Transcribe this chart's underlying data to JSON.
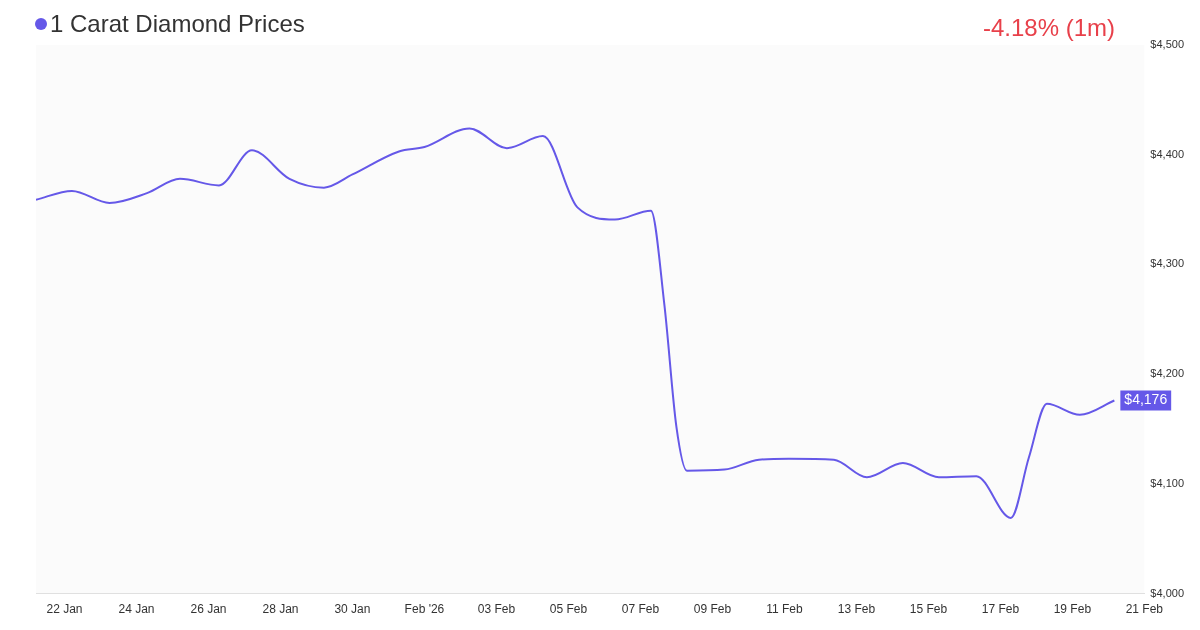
{
  "chart_data": {
    "type": "line",
    "title": "1 Carat Diamond Prices",
    "subtitle": "-4.18% (1m)",
    "x": [
      "2026-01-21T05:00",
      "2026-01-22T05:00",
      "2026-01-23T06:00",
      "2026-01-24T07:00",
      "2026-01-25T05:00",
      "2026-01-26T07:00",
      "2026-01-27T05:00",
      "2026-01-28T06:00",
      "2026-01-29T05:00",
      "2026-01-30T00:00",
      "2026-01-31T07:00",
      "2026-02-01T00:00",
      "2026-02-02T06:00",
      "2026-02-03T07:00",
      "2026-02-04T07:00",
      "2026-02-05T06:00",
      "2026-02-06T07:00",
      "2026-02-07T07:00",
      "2026-02-07T16:00",
      "2026-02-08T00:00",
      "2026-02-08T07:00",
      "2026-02-09T08:00",
      "2026-02-10T07:00",
      "2026-02-11T03:00",
      "2026-02-12T09:00",
      "2026-02-13T07:00",
      "2026-02-14T07:00",
      "2026-02-15T07:00",
      "2026-02-16T08:00",
      "2026-02-17T07:00",
      "2026-02-17T19:00",
      "2026-02-18T07:00",
      "2026-02-19T05:00",
      "2026-02-20T04:00"
    ],
    "series": [
      {
        "color": "#6558e8",
        "values": [
          4359,
          4367,
          4356,
          4365,
          4378,
          4372,
          4404,
          4378,
          4370,
          4382,
          4403,
          4407,
          4424,
          4406,
          4417,
          4352,
          4341,
          4349,
          4263,
          4152,
          4112,
          4113,
          4122,
          4123,
          4122,
          4106,
          4119,
          4106,
          4107,
          4069,
          4124,
          4173,
          4163,
          4176
        ],
        "value_labels": [
          null,
          null,
          null,
          null,
          null,
          null,
          null,
          null,
          null,
          null,
          null,
          null,
          null,
          null,
          null,
          null,
          null,
          null,
          null,
          null,
          null,
          null,
          null,
          null,
          null,
          null,
          null,
          null,
          null,
          null,
          null,
          null,
          null,
          "$4,176"
        ]
      }
    ],
    "xlim": [
      "2026-01-21T05:00",
      "2026-02-21"
    ],
    "xticks": [
      {
        "value": "2026-01-22",
        "label": "22 Jan"
      },
      {
        "value": "2026-01-24",
        "label": "24 Jan"
      },
      {
        "value": "2026-01-26",
        "label": "26 Jan"
      },
      {
        "value": "2026-01-28",
        "label": "28 Jan"
      },
      {
        "value": "2026-01-30",
        "label": "30 Jan"
      },
      {
        "value": "2026-02-01",
        "label": "Feb '26"
      },
      {
        "value": "2026-02-03",
        "label": "03 Feb"
      },
      {
        "value": "2026-02-05",
        "label": "05 Feb"
      },
      {
        "value": "2026-02-07",
        "label": "07 Feb"
      },
      {
        "value": "2026-02-09",
        "label": "09 Feb"
      },
      {
        "value": "2026-02-11",
        "label": "11 Feb"
      },
      {
        "value": "2026-02-13",
        "label": "13 Feb"
      },
      {
        "value": "2026-02-15",
        "label": "15 Feb"
      },
      {
        "value": "2026-02-17",
        "label": "17 Feb"
      },
      {
        "value": "2026-02-19",
        "label": "19 Feb"
      },
      {
        "value": "2026-02-21",
        "label": "21 Feb"
      }
    ],
    "ylim": [
      4000,
      4500
    ],
    "yticks": [
      {
        "value": 4000,
        "label": "$4,000"
      },
      {
        "value": 4100,
        "label": "$4,100"
      },
      {
        "value": 4200,
        "label": "$4,200"
      },
      {
        "value": 4300,
        "label": "$4,300"
      },
      {
        "value": 4400,
        "label": "$4,400"
      },
      {
        "value": 4500,
        "label": "$4,500"
      }
    ],
    "grid": false,
    "marker": "none",
    "line_style": "solid"
  }
}
